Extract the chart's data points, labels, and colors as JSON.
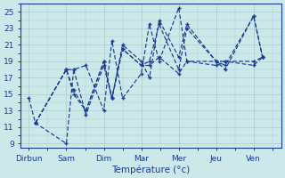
{
  "xlabel": "Température (°c)",
  "background_color": "#cce8e8",
  "grid_color": "#aacccc",
  "line_color": "#1a3a9a",
  "x_tick_labels": [
    "Dirbun",
    "Sam",
    "Dim",
    "Mar",
    "Mer",
    "Jeu",
    "Ven"
  ],
  "x_tick_positions": [
    0,
    46,
    92,
    138,
    184,
    230,
    276
  ],
  "ylim": [
    8.5,
    26
  ],
  "yticks": [
    9,
    11,
    13,
    15,
    17,
    19,
    21,
    23,
    25
  ],
  "series": [
    {
      "x": [
        0,
        8,
        46,
        55,
        70,
        92,
        102,
        115,
        138,
        148,
        160,
        184,
        194,
        230,
        241,
        276,
        287
      ],
      "y": [
        14.5,
        11.5,
        9.0,
        18.0,
        18.5,
        13.0,
        21.5,
        14.5,
        17.5,
        23.5,
        19.0,
        25.5,
        19.0,
        19.0,
        18.5,
        24.5,
        19.5
      ]
    },
    {
      "x": [
        8,
        46,
        55,
        70,
        92,
        102,
        115,
        138,
        148,
        160,
        184,
        194,
        230,
        241,
        276,
        287
      ],
      "y": [
        11.5,
        18.0,
        18.0,
        12.5,
        18.5,
        14.5,
        21.0,
        19.0,
        17.0,
        24.0,
        19.5,
        23.5,
        19.0,
        18.0,
        24.5,
        19.5
      ]
    },
    {
      "x": [
        8,
        46,
        55,
        70,
        92,
        102,
        115,
        138,
        148,
        160,
        184,
        194,
        230,
        241,
        276,
        287
      ],
      "y": [
        11.5,
        18.0,
        15.0,
        13.0,
        19.0,
        14.5,
        20.5,
        18.5,
        19.0,
        23.5,
        18.0,
        23.0,
        19.0,
        19.0,
        19.0,
        19.5
      ]
    },
    {
      "x": [
        8,
        46,
        55,
        70,
        92,
        102,
        115,
        138,
        148,
        160,
        184,
        194,
        230,
        241,
        276,
        287
      ],
      "y": [
        11.5,
        18.0,
        15.5,
        13.0,
        19.0,
        14.5,
        20.5,
        18.5,
        18.5,
        19.5,
        17.5,
        19.0,
        18.5,
        19.0,
        18.5,
        19.5
      ]
    }
  ]
}
